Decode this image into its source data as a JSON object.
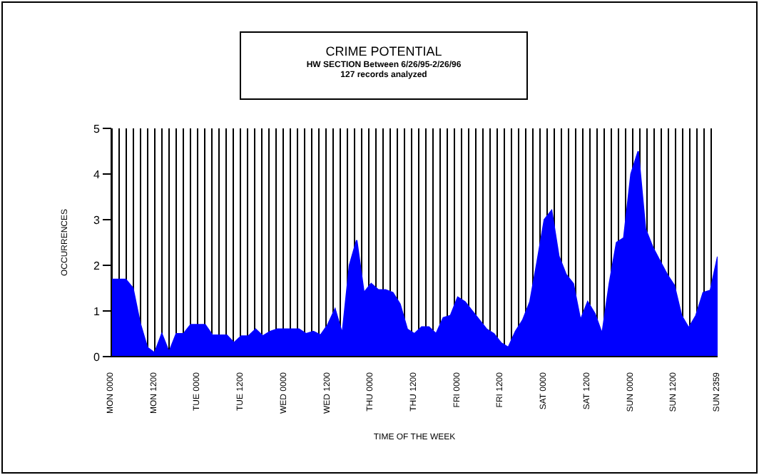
{
  "chart_data": {
    "type": "area",
    "title": "CRIME POTENTIAL",
    "subtitle": "HW SECTION Between 6/26/95-2/26/96",
    "annotations": [
      "127 records analyzed"
    ],
    "xlabel": "TIME OF THE WEEK",
    "ylabel": "OCCURRENCES",
    "color": "#0000ff",
    "categories": [
      "MON 0000",
      null,
      null,
      null,
      null,
      null,
      "MON 1200",
      null,
      null,
      null,
      null,
      null,
      "TUE 0000",
      null,
      null,
      null,
      null,
      null,
      "TUE 1200",
      null,
      null,
      null,
      null,
      null,
      "WED 0000",
      null,
      null,
      null,
      null,
      null,
      "WED 1200",
      null,
      null,
      null,
      null,
      null,
      "THU 0000",
      null,
      null,
      null,
      null,
      null,
      "THU 1200",
      null,
      null,
      null,
      null,
      null,
      "FRI 0000",
      null,
      null,
      null,
      null,
      null,
      "FRI 1200",
      null,
      null,
      null,
      null,
      null,
      "SAT 0000",
      null,
      null,
      null,
      null,
      null,
      "SAT 1200",
      null,
      null,
      null,
      null,
      null,
      "SUN 0000",
      null,
      null,
      null,
      null,
      null,
      "SUN 1200",
      null,
      null,
      null,
      null,
      null,
      "SUN 2359"
    ],
    "values": [
      1.69,
      1.69,
      1.69,
      1.5,
      0.73,
      0.2,
      0.08,
      0.5,
      0.1,
      0.5,
      0.5,
      0.7,
      0.7,
      0.7,
      0.47,
      0.47,
      0.47,
      0.3,
      0.45,
      0.45,
      0.6,
      0.45,
      0.55,
      0.6,
      0.6,
      0.6,
      0.6,
      0.5,
      0.55,
      0.47,
      0.7,
      1.04,
      0.5,
      2.0,
      2.55,
      1.4,
      1.6,
      1.46,
      1.46,
      1.4,
      1.15,
      0.6,
      0.5,
      0.65,
      0.65,
      0.5,
      0.85,
      0.9,
      1.3,
      1.2,
      1.0,
      0.8,
      0.6,
      0.5,
      0.3,
      0.2,
      0.55,
      0.8,
      1.2,
      2.08,
      3.0,
      3.2,
      2.2,
      1.8,
      1.6,
      0.8,
      1.2,
      0.94,
      0.5,
      1.6,
      2.5,
      2.6,
      4.0,
      4.5,
      2.8,
      2.4,
      2.1,
      1.8,
      1.56,
      0.9,
      0.63,
      0.9,
      1.4,
      1.45,
      2.19
    ],
    "ylim": [
      0,
      5
    ],
    "yticks": [
      0,
      1,
      2,
      3,
      4,
      5
    ]
  }
}
